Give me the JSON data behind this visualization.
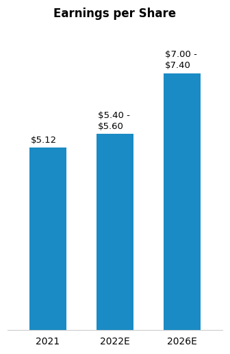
{
  "title": "Earnings per Share",
  "categories": [
    "2021",
    "2022E",
    "2026E"
  ],
  "values": [
    5.12,
    5.5,
    7.2
  ],
  "bar_color": "#1a8bc4",
  "bar_width": 0.55,
  "annotations": [
    "$5.12",
    "$5.40 -\n$5.60",
    "$7.00 -\n$7.40"
  ],
  "ylim": [
    0,
    8.5
  ],
  "title_fontsize": 12,
  "annotation_fontsize": 9.5,
  "xlabel_fontsize": 10,
  "background_color": "#ffffff"
}
